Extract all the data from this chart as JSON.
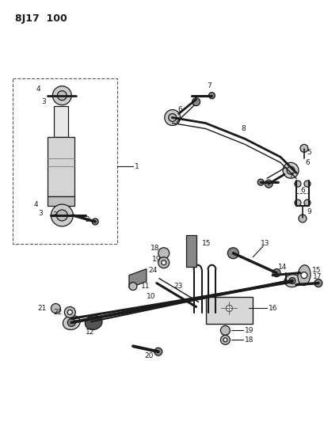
{
  "title": "8J17  100",
  "bg": "#ffffff",
  "fg": "#1a1a1a",
  "figsize": [
    4.09,
    5.33
  ],
  "dpi": 100
}
